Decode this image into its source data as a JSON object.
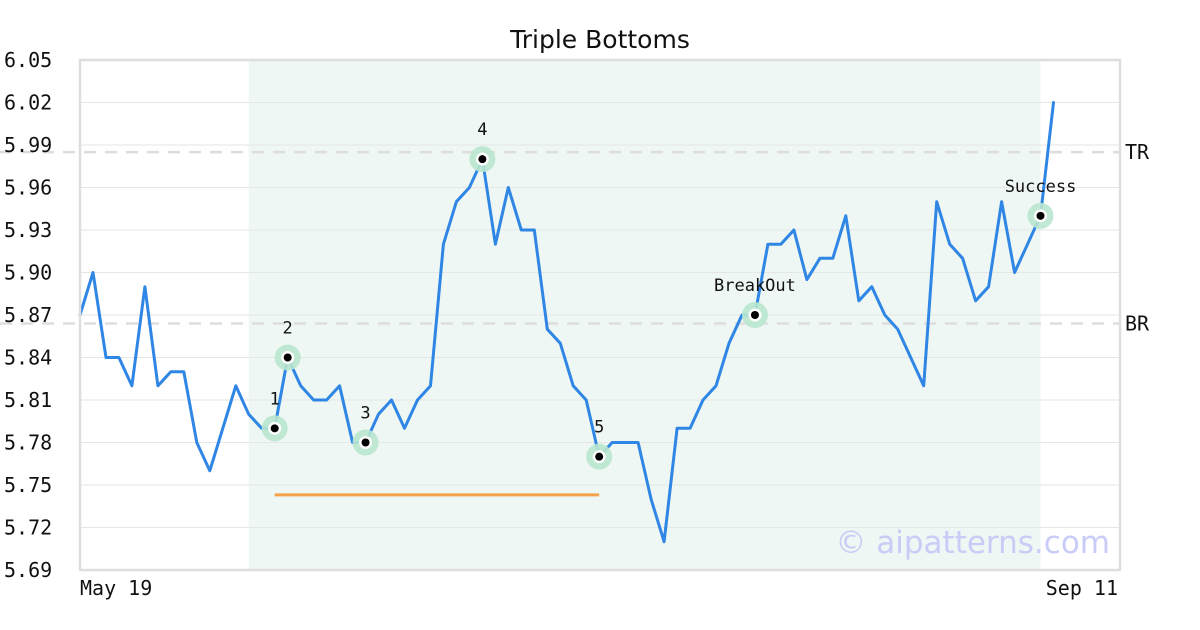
{
  "chart_data": {
    "type": "line",
    "title": "Triple Bottoms",
    "ylim": [
      5.69,
      6.05
    ],
    "y_ticks": [
      "6.05",
      "6.02",
      "5.99",
      "5.96",
      "5.93",
      "5.90",
      "5.87",
      "5.84",
      "5.81",
      "5.78",
      "5.75",
      "5.72",
      "5.69"
    ],
    "x_labels": {
      "start": "May 19",
      "end": "Sep 11"
    },
    "grid": true,
    "series": [
      {
        "color": "#2f86e4",
        "values": [
          5.87,
          5.9,
          5.84,
          5.84,
          5.82,
          5.89,
          5.82,
          5.83,
          5.83,
          5.78,
          5.76,
          5.79,
          5.82,
          5.8,
          5.79,
          5.79,
          5.84,
          5.82,
          5.81,
          5.81,
          5.82,
          5.78,
          5.78,
          5.8,
          5.81,
          5.79,
          5.81,
          5.82,
          5.92,
          5.95,
          5.96,
          5.98,
          5.92,
          5.96,
          5.93,
          5.93,
          5.86,
          5.85,
          5.82,
          5.81,
          5.77,
          5.78,
          5.78,
          5.78,
          5.74,
          5.71,
          5.79,
          5.79,
          5.81,
          5.82,
          5.85,
          5.87,
          5.87,
          5.92,
          5.92,
          5.93,
          5.895,
          5.91,
          5.91,
          5.94,
          5.88,
          5.89,
          5.87,
          5.86,
          5.84,
          5.82,
          5.95,
          5.92,
          5.91,
          5.88,
          5.89,
          5.95,
          5.9,
          5.92,
          5.94,
          6.02
        ]
      }
    ],
    "pattern_region": {
      "x_start": 13,
      "x_end": 74,
      "color": "#eef7f3"
    },
    "levels": [
      {
        "label": "TR",
        "y": 5.985
      },
      {
        "label": "BR",
        "y": 5.864
      }
    ],
    "support_segment": {
      "x_start": 15,
      "x_end": 40,
      "y": 5.743,
      "color": "#f5a04a"
    },
    "points": [
      {
        "label": "1",
        "x": 15,
        "y": 5.79
      },
      {
        "label": "2",
        "x": 16,
        "y": 5.84
      },
      {
        "label": "3",
        "x": 22,
        "y": 5.78
      },
      {
        "label": "4",
        "x": 31,
        "y": 5.98
      },
      {
        "label": "5",
        "x": 40,
        "y": 5.77
      },
      {
        "label": "BreakOut",
        "x": 52,
        "y": 5.87
      },
      {
        "label": "Success",
        "x": 74,
        "y": 5.94
      }
    ],
    "x_count": 76
  },
  "watermark": "© aipatterns.com"
}
